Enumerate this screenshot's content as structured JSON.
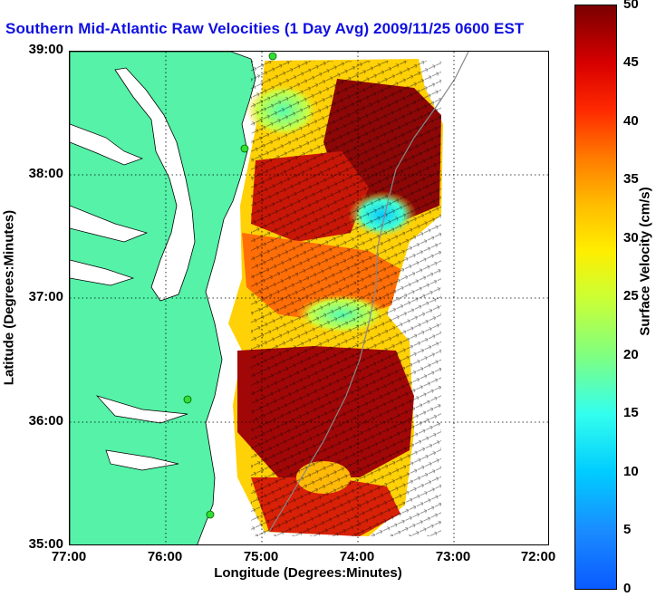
{
  "title": "Southern Mid-Atlantic Raw Velocities (1 Day Avg) 2009/11/25 0600 EST",
  "y_axis": {
    "title": "Latitude (Degrees:Minutes)",
    "ticks": [
      "39:00",
      "38:00",
      "37:00",
      "36:00",
      "35:00"
    ]
  },
  "x_axis": {
    "title": "Longitude (Degrees:Minutes)",
    "ticks": [
      "77:00",
      "76:00",
      "75:00",
      "74:00",
      "73:00",
      "72:00"
    ]
  },
  "colorbar": {
    "title": "Surface Velocity (cm/s)",
    "ticks": [
      "50",
      "45",
      "40",
      "35",
      "30",
      "25",
      "20",
      "15",
      "10",
      "5",
      "0"
    ],
    "min": 0,
    "max": 50
  },
  "map": {
    "land_color": "#55f2a8",
    "water_color": "#ffffff",
    "grid": "dotted",
    "lat_range": [
      35,
      39
    ],
    "lon_range": [
      -77,
      -72
    ]
  }
}
